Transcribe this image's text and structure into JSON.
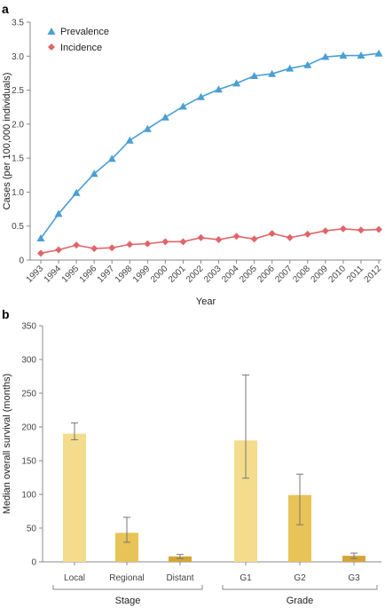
{
  "chart_data": [
    {
      "panel": "a",
      "type": "line",
      "xlabel": "Year",
      "ylabel": "Cases (per 100,000 individuals)",
      "ylim": [
        0,
        3.5
      ],
      "yticks": [
        "0",
        "0.5",
        "1.0",
        "1.5",
        "2.0",
        "2.5",
        "3.0",
        "3.5"
      ],
      "x": [
        "1993",
        "1994",
        "1995",
        "1996",
        "1997",
        "1998",
        "1999",
        "2000",
        "2001",
        "2002",
        "2003",
        "2004",
        "2005",
        "2006",
        "2007",
        "2008",
        "2009",
        "2010",
        "2011",
        "2012"
      ],
      "series": [
        {
          "name": "Prevalence",
          "marker": "triangle",
          "color": "#4a9fd4",
          "values": [
            0.32,
            0.68,
            0.99,
            1.27,
            1.49,
            1.76,
            1.93,
            2.1,
            2.26,
            2.4,
            2.51,
            2.6,
            2.71,
            2.74,
            2.82,
            2.87,
            2.99,
            3.01,
            3.01,
            3.04
          ]
        },
        {
          "name": "Incidence",
          "marker": "diamond",
          "color": "#e0656a",
          "values": [
            0.1,
            0.15,
            0.22,
            0.17,
            0.18,
            0.23,
            0.24,
            0.27,
            0.27,
            0.33,
            0.3,
            0.35,
            0.31,
            0.39,
            0.33,
            0.38,
            0.43,
            0.46,
            0.44,
            0.45
          ]
        }
      ],
      "legend": "top-left",
      "grid": false
    },
    {
      "panel": "b",
      "type": "bar",
      "ylabel": "Median overall survival (months)",
      "ylim": [
        0,
        350
      ],
      "yticks": [
        "0",
        "50",
        "100",
        "150",
        "200",
        "250",
        "300",
        "350"
      ],
      "categories": [
        "Local",
        "Regional",
        "Distant",
        "G1",
        "G2",
        "G3"
      ],
      "values": [
        190,
        43,
        8,
        180,
        99,
        9
      ],
      "error_low": [
        181,
        29,
        5,
        124,
        55,
        5
      ],
      "error_high": [
        206,
        66,
        11,
        277,
        130,
        13
      ],
      "colors": [
        "#f5dc8c",
        "#e8c357",
        "#d4a637",
        "#f5dc8c",
        "#e8c357",
        "#d4a637"
      ],
      "groups": [
        {
          "label": "Stage",
          "members": [
            "Local",
            "Regional",
            "Distant"
          ]
        },
        {
          "label": "Grade",
          "members": [
            "G1",
            "G2",
            "G3"
          ]
        }
      ],
      "grid": false
    }
  ]
}
